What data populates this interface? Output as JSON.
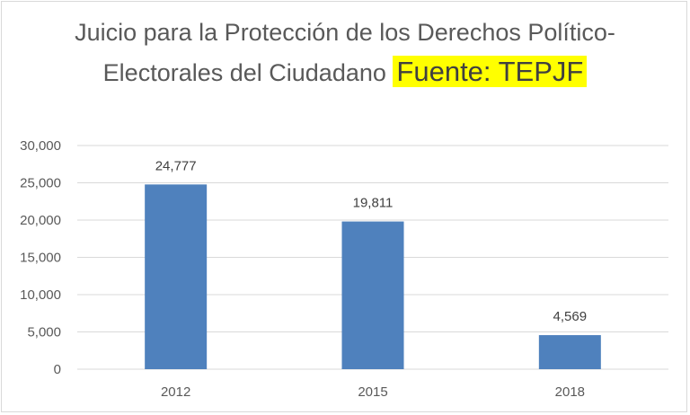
{
  "chart": {
    "title_line1": "Juicio para la Protección de los Derechos Político-",
    "title_line2": "Electorales del Ciudadano",
    "source": "Fuente: TEPJF"
  },
  "chart_data": {
    "type": "bar",
    "title": "Juicio para la Protección de los Derechos Político-Electorales del Ciudadano",
    "categories": [
      "2012",
      "2015",
      "2018"
    ],
    "values": [
      24777,
      19811,
      4569
    ],
    "data_labels": [
      "24,777",
      "19,811",
      "4,569"
    ],
    "yticks": [
      "0",
      "5,000",
      "10,000",
      "15,000",
      "20,000",
      "25,000",
      "30,000"
    ],
    "ylim": [
      0,
      30000
    ],
    "xlabel": "",
    "ylabel": "",
    "grid": true,
    "bar_color": "#4f81bd",
    "grid_color": "#d9d9d9"
  }
}
